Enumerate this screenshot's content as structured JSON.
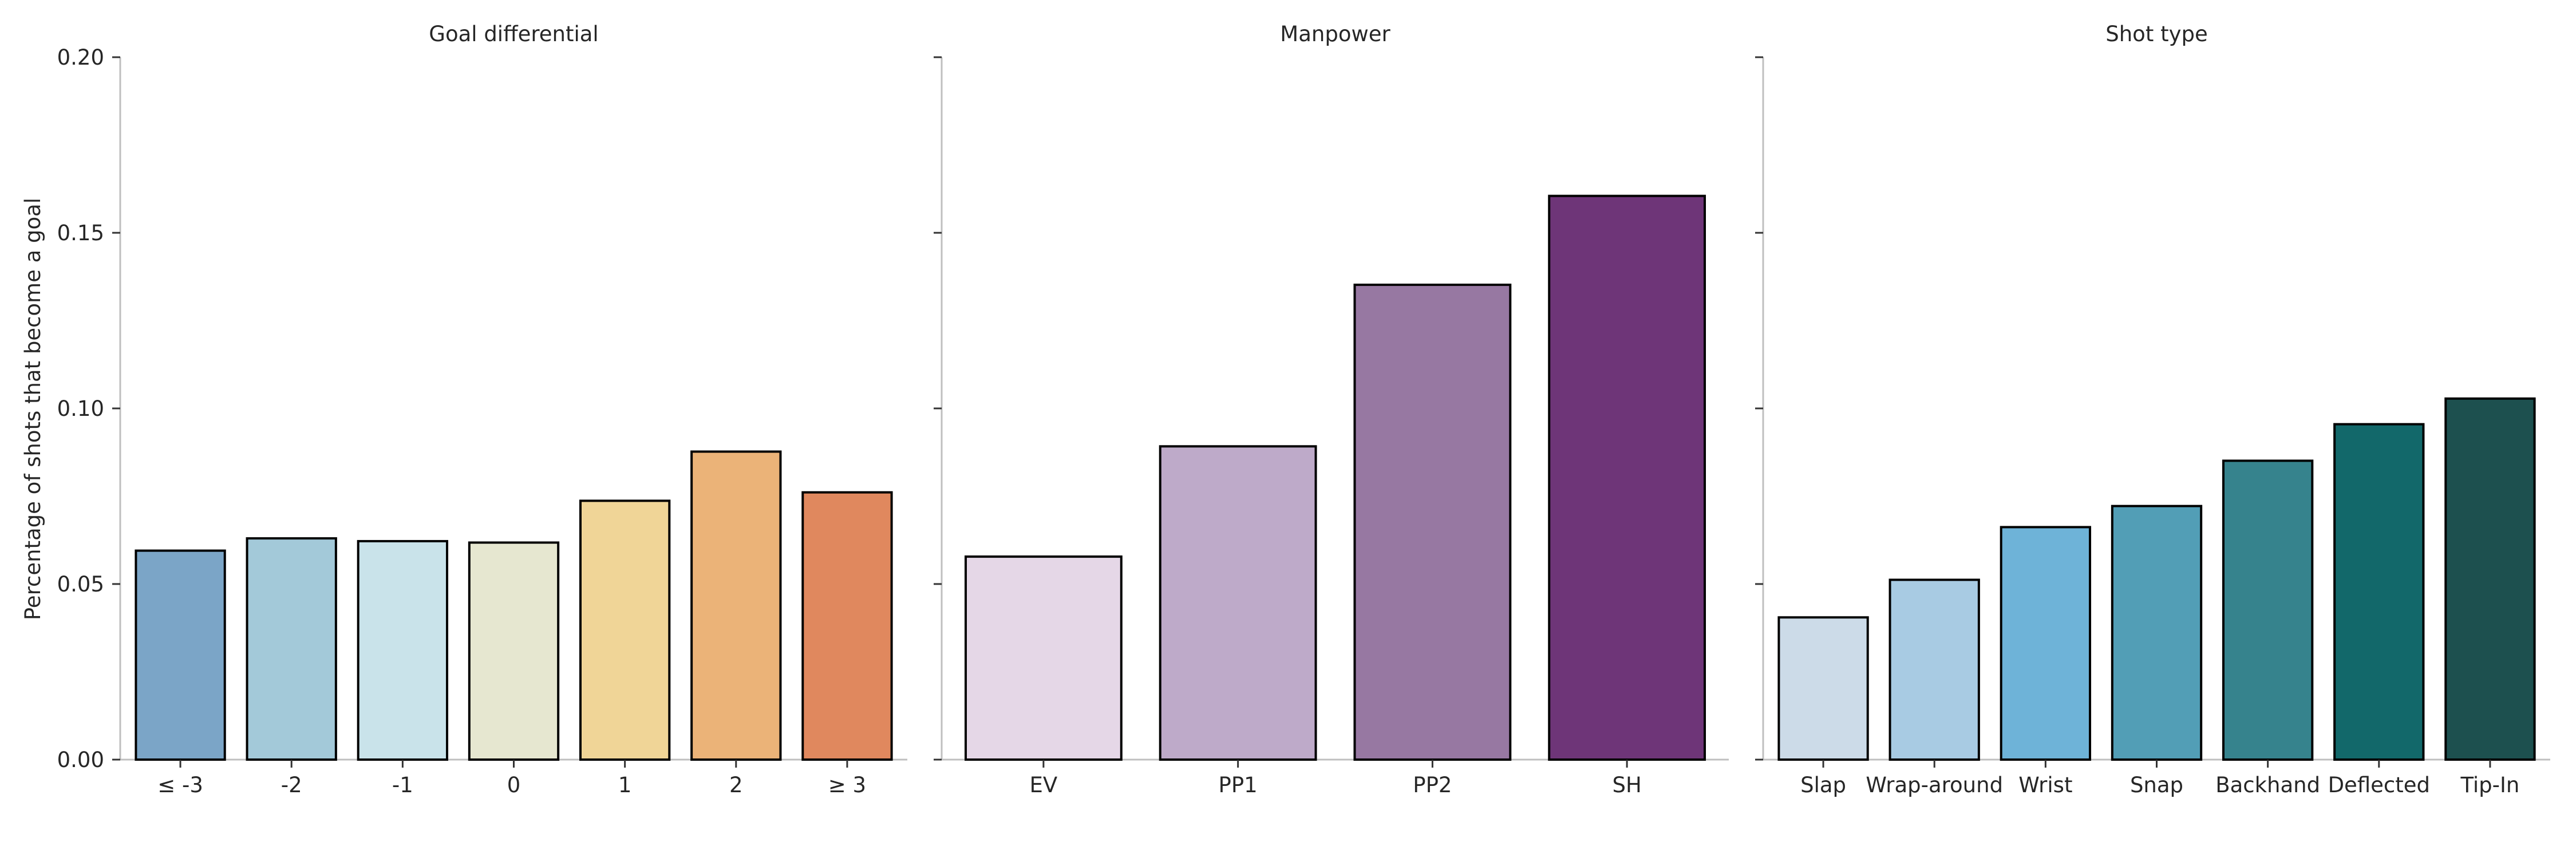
{
  "chart_data": [
    {
      "type": "bar",
      "title": "Goal differential",
      "ylabel": "Percentage of shots that become a goal",
      "ylim": [
        0,
        0.2
      ],
      "yticks": [
        "0.00",
        "0.05",
        "0.10",
        "0.15",
        "0.20"
      ],
      "categories": [
        "≤ -3",
        "-2",
        "-1",
        "0",
        "1",
        "2",
        "≥ 3"
      ],
      "values": [
        0.0595,
        0.063,
        0.0622,
        0.0618,
        0.0737,
        0.0877,
        0.0761
      ],
      "colors": [
        "#7ba5c7",
        "#a3c9d9",
        "#c9e3ea",
        "#e6e7d0",
        "#f0d597",
        "#ebb378",
        "#e0885e"
      ],
      "grid": false
    },
    {
      "type": "bar",
      "title": "Manpower",
      "ylim": [
        0,
        0.2
      ],
      "categories": [
        "EV",
        "PP1",
        "PP2",
        "SH"
      ],
      "values": [
        0.0578,
        0.0892,
        0.1352,
        0.1605
      ],
      "colors": [
        "#e5d7e7",
        "#beaac9",
        "#9778a2",
        "#6e3578"
      ],
      "grid": false
    },
    {
      "type": "bar",
      "title": "Shot type",
      "ylim": [
        0,
        0.2
      ],
      "categories": [
        "Slap",
        "Wrap-around",
        "Wrist",
        "Snap",
        "Backhand",
        "Deflected",
        "Tip-In"
      ],
      "values": [
        0.0405,
        0.0512,
        0.0662,
        0.0722,
        0.0851,
        0.0955,
        0.1028
      ],
      "colors": [
        "#ccdbe8",
        "#a8cbe3",
        "#6eb3d8",
        "#529eb6",
        "#36838d",
        "#12686a",
        "#1d504f"
      ],
      "grid": false
    }
  ]
}
